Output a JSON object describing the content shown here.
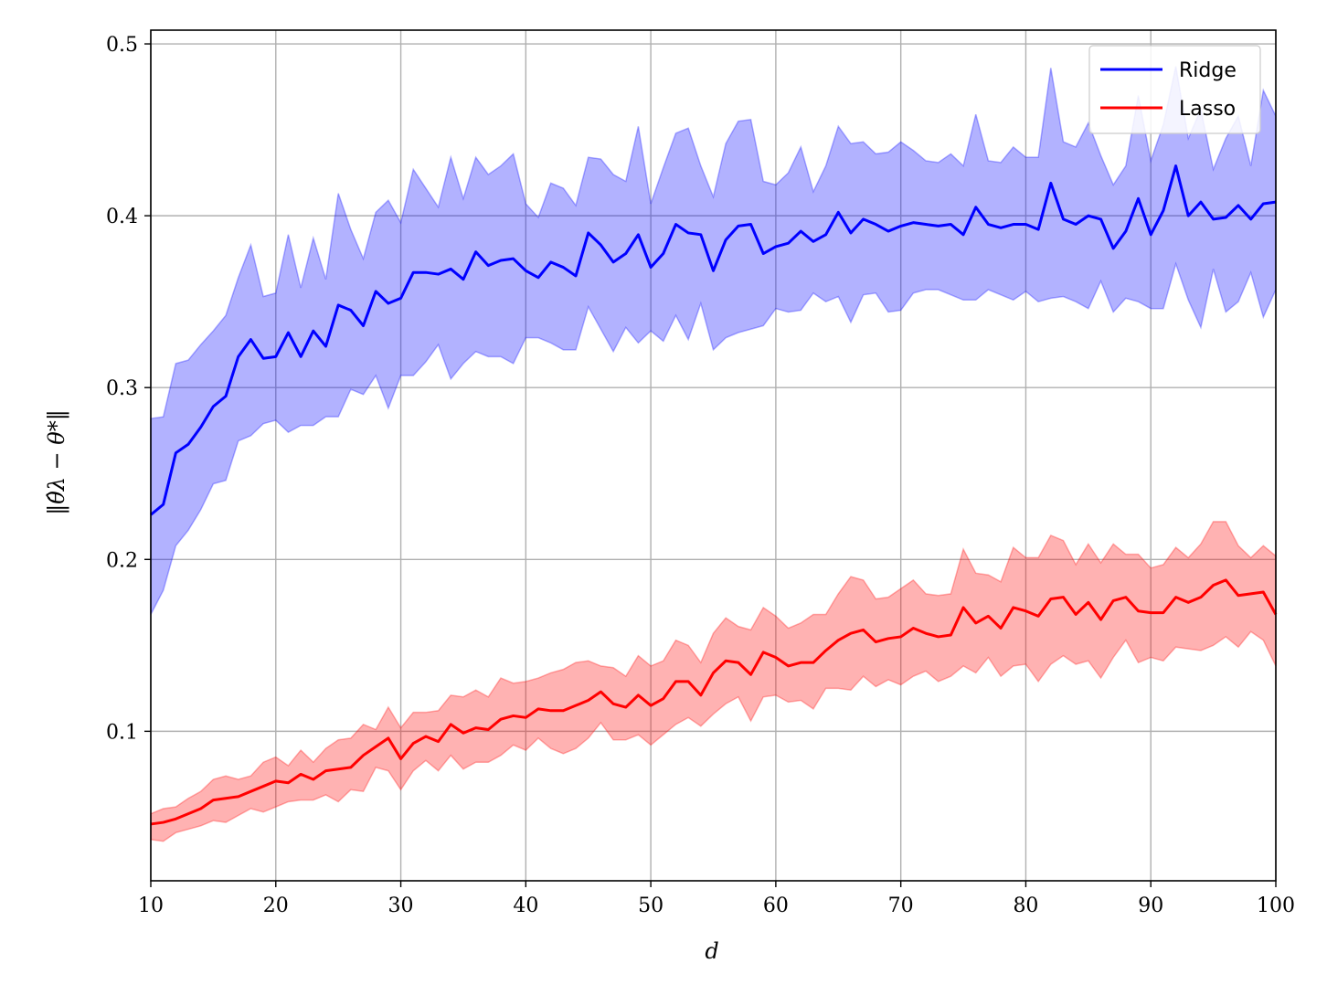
{
  "chart_data": {
    "type": "line",
    "title": "",
    "xlabel": "d",
    "ylabel": "‖θ̂λ − θ*‖",
    "xlim": [
      10,
      100
    ],
    "ylim": [
      0.013,
      0.508
    ],
    "grid": true,
    "legend": {
      "placement": "top-right",
      "entries": [
        "Ridge",
        "Lasso"
      ]
    },
    "x_ticks": [
      "10",
      "20",
      "30",
      "40",
      "50",
      "60",
      "70",
      "80",
      "90",
      "100"
    ],
    "y_ticks": [
      "0.1",
      "0.2",
      "0.3",
      "0.4",
      "0.5"
    ],
    "x": [
      10,
      11,
      12,
      13,
      14,
      15,
      16,
      17,
      18,
      19,
      20,
      21,
      22,
      23,
      24,
      25,
      26,
      27,
      28,
      29,
      30,
      31,
      32,
      33,
      34,
      35,
      36,
      37,
      38,
      39,
      40,
      41,
      42,
      43,
      44,
      45,
      46,
      47,
      48,
      49,
      50,
      51,
      52,
      53,
      54,
      55,
      56,
      57,
      58,
      59,
      60,
      61,
      62,
      63,
      64,
      65,
      66,
      67,
      68,
      69,
      70,
      71,
      72,
      73,
      74,
      75,
      76,
      77,
      78,
      79,
      80,
      81,
      82,
      83,
      84,
      85,
      86,
      87,
      88,
      89,
      90,
      91,
      92,
      93,
      94,
      95,
      96,
      97,
      98,
      99,
      100
    ],
    "series": [
      {
        "name": "Ridge",
        "color": "#0000ff",
        "band_color": "#0000ff",
        "values": [
          0.226,
          0.232,
          0.262,
          0.267,
          0.277,
          0.289,
          0.295,
          0.318,
          0.328,
          0.317,
          0.318,
          0.332,
          0.318,
          0.333,
          0.324,
          0.348,
          0.345,
          0.336,
          0.356,
          0.349,
          0.352,
          0.367,
          0.367,
          0.366,
          0.369,
          0.363,
          0.379,
          0.371,
          0.374,
          0.375,
          0.368,
          0.364,
          0.373,
          0.37,
          0.365,
          0.39,
          0.383,
          0.373,
          0.378,
          0.389,
          0.37,
          0.378,
          0.395,
          0.39,
          0.389,
          0.368,
          0.386,
          0.394,
          0.395,
          0.378,
          0.382,
          0.384,
          0.391,
          0.385,
          0.389,
          0.402,
          0.39,
          0.398,
          0.395,
          0.391,
          0.394,
          0.396,
          0.395,
          0.394,
          0.395,
          0.389,
          0.405,
          0.395,
          0.393,
          0.395,
          0.395,
          0.392,
          0.419,
          0.398,
          0.395,
          0.4,
          0.398,
          0.381,
          0.391,
          0.41,
          0.389,
          0.403,
          0.429,
          0.4,
          0.408,
          0.398,
          0.399,
          0.406,
          0.398,
          0.407,
          0.408
        ],
        "upper": [
          0.282,
          0.283,
          0.314,
          0.316,
          0.325,
          0.333,
          0.342,
          0.364,
          0.383,
          0.353,
          0.355,
          0.389,
          0.358,
          0.387,
          0.363,
          0.413,
          0.392,
          0.375,
          0.402,
          0.409,
          0.396,
          0.427,
          0.416,
          0.405,
          0.434,
          0.41,
          0.434,
          0.424,
          0.429,
          0.436,
          0.407,
          0.399,
          0.419,
          0.416,
          0.406,
          0.434,
          0.433,
          0.424,
          0.42,
          0.452,
          0.407,
          0.428,
          0.448,
          0.451,
          0.429,
          0.411,
          0.442,
          0.455,
          0.456,
          0.42,
          0.418,
          0.425,
          0.44,
          0.414,
          0.429,
          0.452,
          0.442,
          0.443,
          0.436,
          0.437,
          0.443,
          0.438,
          0.432,
          0.431,
          0.436,
          0.429,
          0.459,
          0.432,
          0.431,
          0.44,
          0.434,
          0.434,
          0.486,
          0.443,
          0.44,
          0.454,
          0.435,
          0.418,
          0.429,
          0.47,
          0.432,
          0.453,
          0.487,
          0.445,
          0.462,
          0.427,
          0.445,
          0.458,
          0.429,
          0.473,
          0.458
        ],
        "lower": [
          0.168,
          0.182,
          0.208,
          0.217,
          0.229,
          0.244,
          0.246,
          0.269,
          0.272,
          0.279,
          0.281,
          0.274,
          0.278,
          0.278,
          0.283,
          0.283,
          0.299,
          0.296,
          0.307,
          0.288,
          0.307,
          0.307,
          0.315,
          0.325,
          0.305,
          0.314,
          0.321,
          0.318,
          0.318,
          0.314,
          0.329,
          0.329,
          0.326,
          0.322,
          0.322,
          0.347,
          0.334,
          0.321,
          0.335,
          0.326,
          0.333,
          0.327,
          0.342,
          0.328,
          0.349,
          0.322,
          0.329,
          0.332,
          0.334,
          0.336,
          0.346,
          0.344,
          0.345,
          0.355,
          0.35,
          0.353,
          0.338,
          0.354,
          0.355,
          0.344,
          0.345,
          0.355,
          0.357,
          0.357,
          0.354,
          0.351,
          0.351,
          0.357,
          0.354,
          0.351,
          0.356,
          0.35,
          0.352,
          0.353,
          0.35,
          0.346,
          0.362,
          0.344,
          0.352,
          0.35,
          0.346,
          0.346,
          0.372,
          0.351,
          0.335,
          0.369,
          0.344,
          0.35,
          0.367,
          0.341,
          0.357
        ]
      },
      {
        "name": "Lasso",
        "color": "#ff0000",
        "band_color": "#ff0000",
        "values": [
          0.046,
          0.047,
          0.049,
          0.052,
          0.055,
          0.06,
          0.061,
          0.062,
          0.065,
          0.068,
          0.071,
          0.07,
          0.075,
          0.072,
          0.077,
          0.078,
          0.079,
          0.086,
          0.091,
          0.096,
          0.084,
          0.093,
          0.097,
          0.094,
          0.104,
          0.099,
          0.102,
          0.101,
          0.107,
          0.109,
          0.108,
          0.113,
          0.112,
          0.112,
          0.115,
          0.118,
          0.123,
          0.116,
          0.114,
          0.121,
          0.115,
          0.119,
          0.129,
          0.129,
          0.121,
          0.134,
          0.141,
          0.14,
          0.133,
          0.146,
          0.143,
          0.138,
          0.14,
          0.14,
          0.147,
          0.153,
          0.157,
          0.159,
          0.152,
          0.154,
          0.155,
          0.16,
          0.157,
          0.155,
          0.156,
          0.172,
          0.163,
          0.167,
          0.16,
          0.172,
          0.17,
          0.167,
          0.177,
          0.178,
          0.168,
          0.175,
          0.165,
          0.176,
          0.178,
          0.17,
          0.169,
          0.169,
          0.178,
          0.175,
          0.178,
          0.185,
          0.188,
          0.179,
          0.18,
          0.181,
          0.168
        ],
        "upper": [
          0.052,
          0.055,
          0.056,
          0.061,
          0.065,
          0.072,
          0.074,
          0.072,
          0.074,
          0.082,
          0.085,
          0.08,
          0.089,
          0.082,
          0.09,
          0.095,
          0.096,
          0.104,
          0.101,
          0.114,
          0.102,
          0.111,
          0.111,
          0.112,
          0.121,
          0.12,
          0.124,
          0.12,
          0.131,
          0.128,
          0.129,
          0.131,
          0.134,
          0.136,
          0.14,
          0.141,
          0.138,
          0.137,
          0.132,
          0.144,
          0.138,
          0.141,
          0.153,
          0.15,
          0.14,
          0.157,
          0.166,
          0.161,
          0.159,
          0.172,
          0.167,
          0.16,
          0.163,
          0.168,
          0.168,
          0.18,
          0.19,
          0.188,
          0.177,
          0.178,
          0.183,
          0.188,
          0.18,
          0.179,
          0.18,
          0.206,
          0.192,
          0.191,
          0.187,
          0.207,
          0.201,
          0.201,
          0.214,
          0.211,
          0.197,
          0.209,
          0.198,
          0.209,
          0.203,
          0.203,
          0.195,
          0.197,
          0.207,
          0.201,
          0.209,
          0.222,
          0.222,
          0.208,
          0.201,
          0.208,
          0.202
        ],
        "lower": [
          0.037,
          0.036,
          0.041,
          0.043,
          0.045,
          0.048,
          0.047,
          0.051,
          0.055,
          0.053,
          0.056,
          0.059,
          0.06,
          0.06,
          0.063,
          0.059,
          0.066,
          0.065,
          0.079,
          0.077,
          0.066,
          0.077,
          0.083,
          0.077,
          0.086,
          0.078,
          0.082,
          0.082,
          0.086,
          0.092,
          0.089,
          0.096,
          0.09,
          0.087,
          0.09,
          0.096,
          0.105,
          0.095,
          0.095,
          0.098,
          0.092,
          0.098,
          0.104,
          0.108,
          0.103,
          0.11,
          0.116,
          0.12,
          0.106,
          0.12,
          0.121,
          0.117,
          0.118,
          0.113,
          0.125,
          0.125,
          0.124,
          0.132,
          0.126,
          0.13,
          0.127,
          0.132,
          0.135,
          0.129,
          0.132,
          0.138,
          0.134,
          0.143,
          0.132,
          0.138,
          0.139,
          0.129,
          0.139,
          0.144,
          0.139,
          0.141,
          0.131,
          0.143,
          0.153,
          0.14,
          0.143,
          0.141,
          0.149,
          0.148,
          0.147,
          0.15,
          0.155,
          0.149,
          0.158,
          0.153,
          0.138
        ]
      }
    ]
  }
}
